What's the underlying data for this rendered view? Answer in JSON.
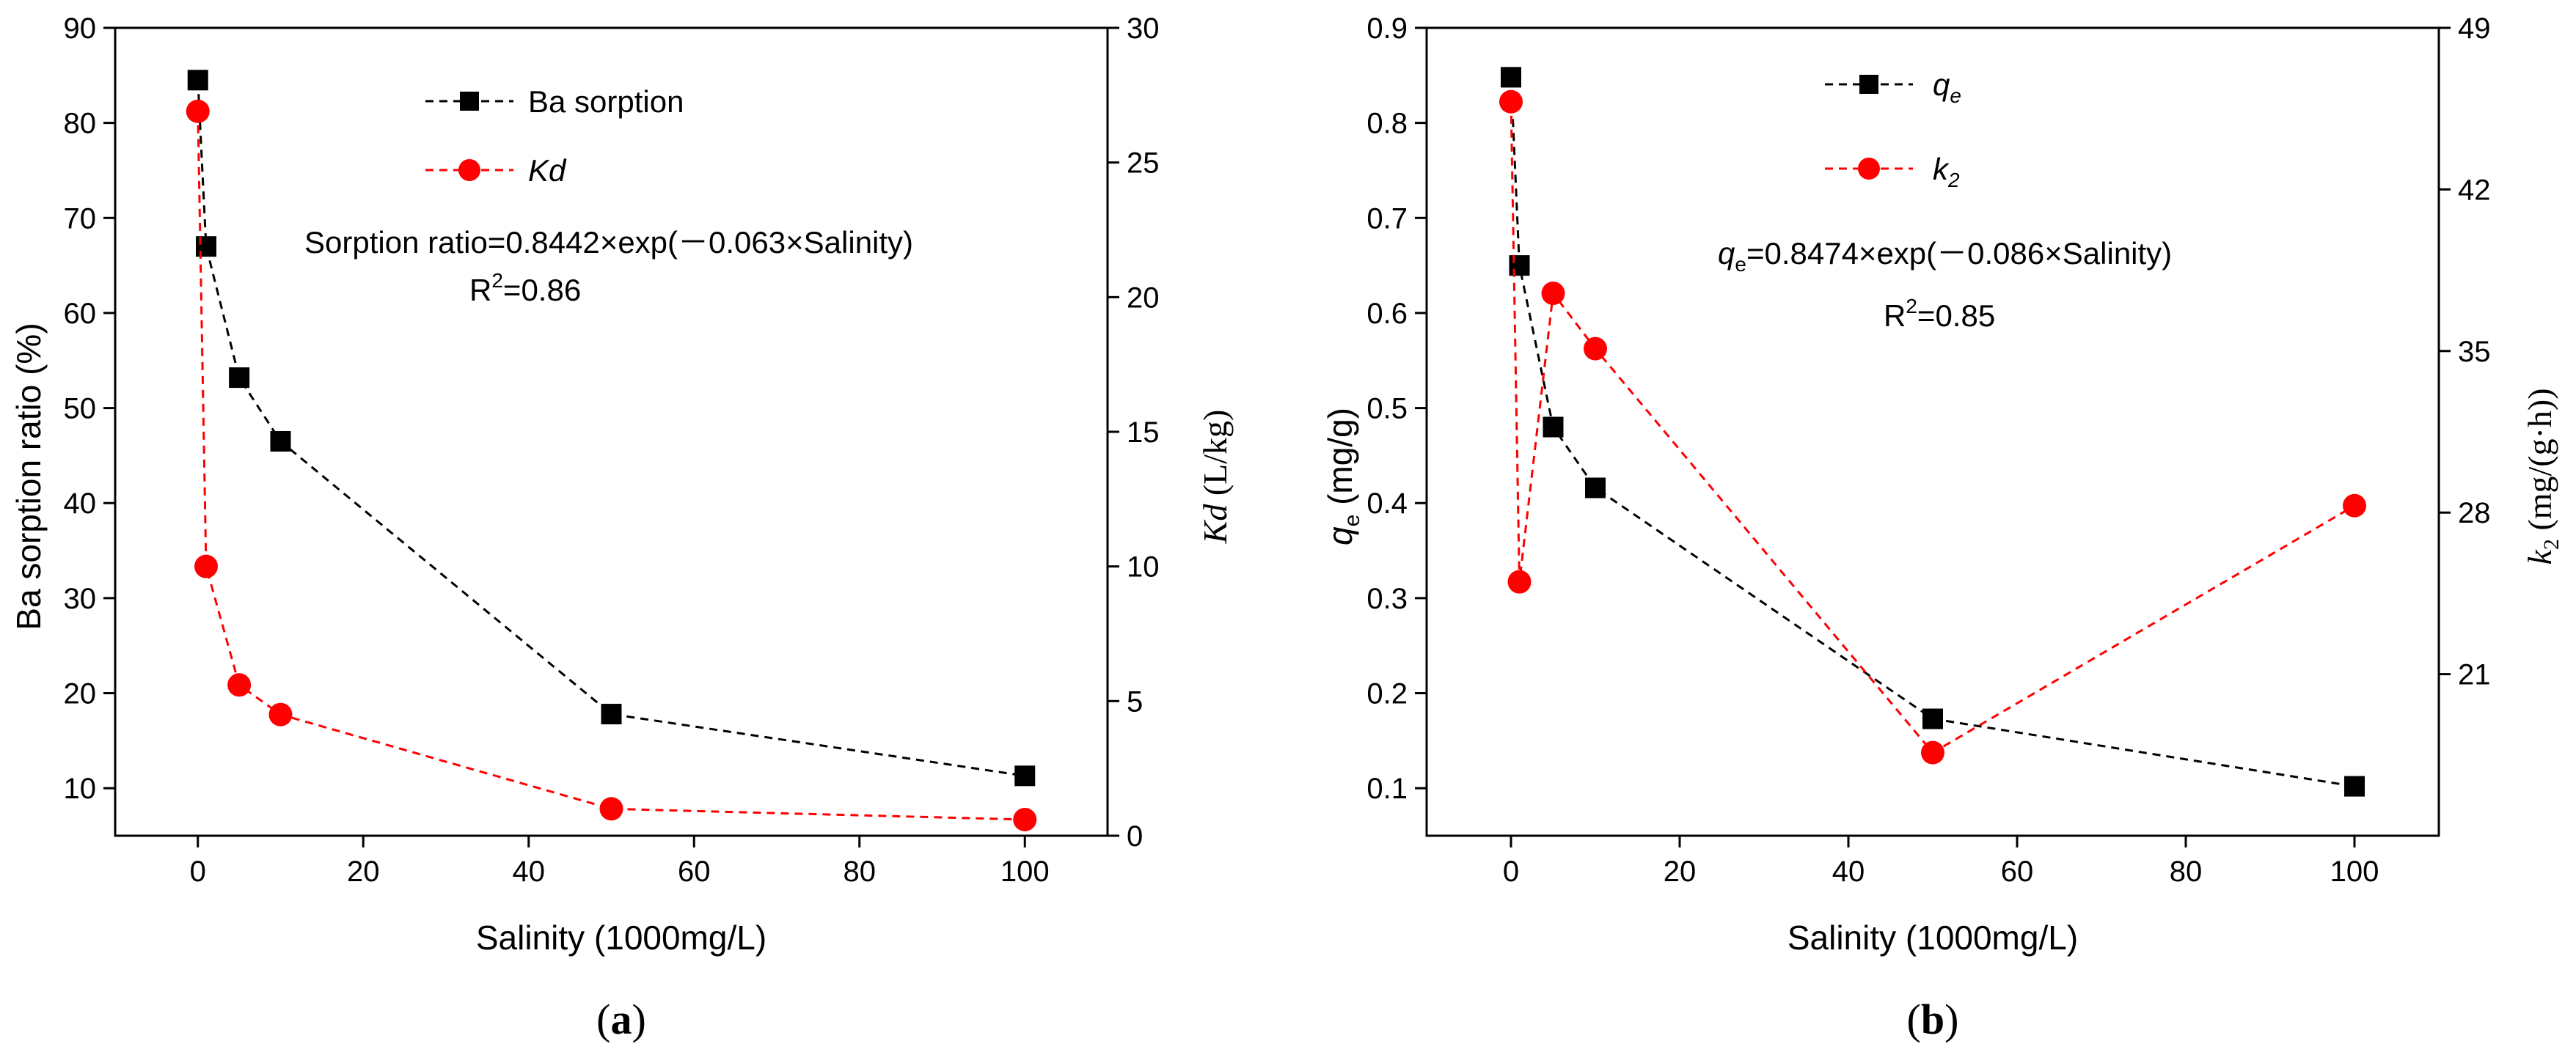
{
  "chart_data": [
    {
      "type": "line",
      "panel_label": "a",
      "x": [
        0,
        1,
        5,
        10,
        50,
        100
      ],
      "xlabel": "Salinity (1000mg/L)",
      "xlim": [
        -10,
        110
      ],
      "xticks": [
        "0",
        "20",
        "40",
        "60",
        "80",
        "100"
      ],
      "ylabel_left": "Ba sorption ratio (%)",
      "ylim_left": [
        5,
        90
      ],
      "yticks_left": [
        "10",
        "20",
        "30",
        "40",
        "50",
        "60",
        "70",
        "80",
        "90"
      ],
      "ylabel_right_italic": "Kd",
      "ylabel_right_rest": " (L/kg)",
      "ylim_right": [
        0,
        30
      ],
      "yticks_right": [
        "0",
        "5",
        "10",
        "15",
        "20",
        "25",
        "30"
      ],
      "series": [
        {
          "name": "Ba sorption",
          "axis": "left",
          "color": "#000000",
          "marker": "square",
          "values": [
            84.5,
            67,
            53.2,
            46.5,
            17.8,
            11.3
          ]
        },
        {
          "name": "Kd",
          "axis": "right",
          "color": "#ff0000",
          "marker": "circle",
          "values": [
            26.9,
            10.0,
            5.6,
            4.5,
            1.0,
            0.6
          ]
        }
      ],
      "annotation": {
        "line1": "Sorption ratio=0.8442×exp(－0.063×Salinity)",
        "r2_prefix": "R",
        "r2_sup": "2",
        "r2_value": "=0.86"
      }
    },
    {
      "type": "line",
      "panel_label": "b",
      "x": [
        0,
        1,
        5,
        10,
        50,
        100
      ],
      "xlabel": "Salinity (1000mg/L)",
      "xlim": [
        -10,
        110
      ],
      "xticks": [
        "0",
        "20",
        "40",
        "60",
        "80",
        "100"
      ],
      "ylabel_left_main": "q",
      "ylabel_left_sub": "e",
      "ylabel_left_rest": " (mg/g)",
      "ylim_left": [
        0.05,
        0.9
      ],
      "yticks_left": [
        "0.1",
        "0.2",
        "0.3",
        "0.4",
        "0.5",
        "0.6",
        "0.7",
        "0.8",
        "0.9"
      ],
      "ylabel_right_main": "k",
      "ylabel_right_sub": "2",
      "ylabel_right_rest": " (mg/(g·h))",
      "ylim_right": [
        14,
        49
      ],
      "yticks_right": [
        "21",
        "28",
        "35",
        "42",
        "49"
      ],
      "series": [
        {
          "name_main": "q",
          "name_sub": "e",
          "axis": "left",
          "color": "#000000",
          "marker": "square",
          "values": [
            0.848,
            0.65,
            0.48,
            0.416,
            0.173,
            0.102
          ]
        },
        {
          "name_main": "k",
          "name_sub": "2",
          "axis": "right",
          "color": "#ff0000",
          "marker": "circle",
          "values": [
            45.8,
            25.0,
            37.5,
            35.1,
            17.6,
            28.3
          ]
        }
      ],
      "annotation": {
        "line1_main": "q",
        "line1_sub": "e",
        "line1_rest": "=0.8474×exp(－0.086×Salinity)",
        "r2_prefix": "R",
        "r2_sup": "2",
        "r2_value": "=0.85"
      }
    }
  ]
}
